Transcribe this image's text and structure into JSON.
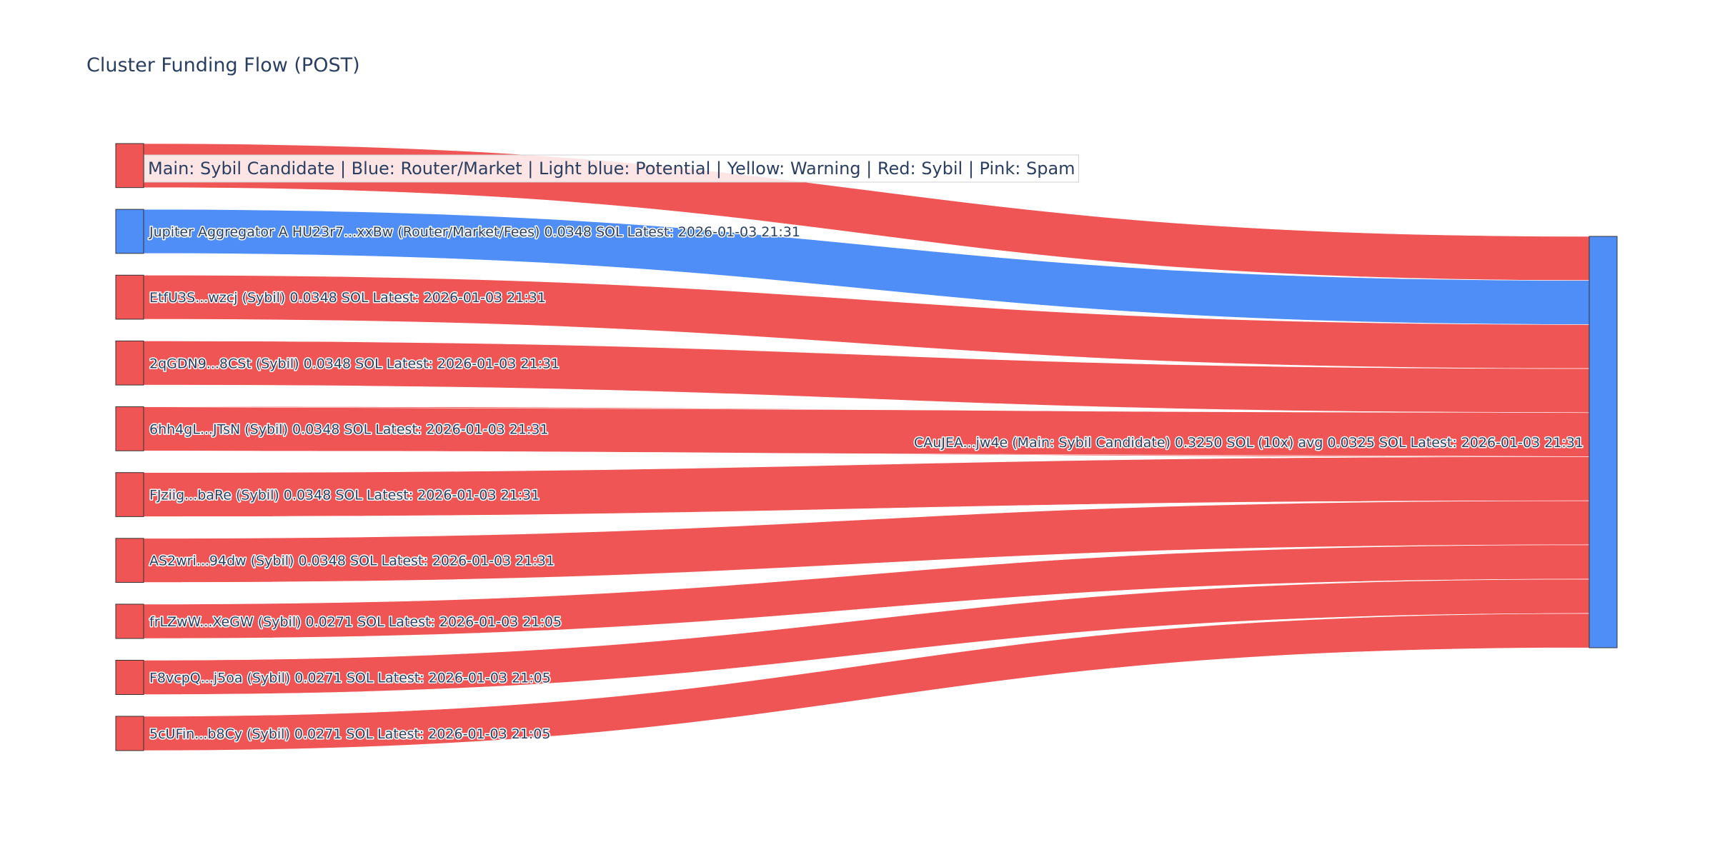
{
  "chart_data": {
    "type": "sankey",
    "title": "Cluster Funding Flow (POST)",
    "legend_text": "Main: Sybil Candidate  |  Blue: Router/Market | Light blue: Potential | Yellow: Warning | Red: Sybil | Pink: Spam",
    "legend_placement": "top-left",
    "colors": {
      "sybil": "#ef5555",
      "router": "#4f8ef7",
      "main": "#4f8ef7",
      "node_outline": "#333333",
      "text": "#2a3f5f"
    },
    "target": {
      "label": "CAuJEA...jw4e (Main: Sybil Candidate) 0.3250 SOL (10x) avg 0.0325 SOL Latest: 2026-01-03 21:31",
      "category": "main",
      "value": 0.325
    },
    "sources": [
      {
        "label": "",
        "category": "sybil",
        "value": 0.0348
      },
      {
        "label": "Jupiter Aggregator A HU23r7...xxBw (Router/Market/Fees) 0.0348 SOL Latest: 2026-01-03 21:31",
        "category": "router",
        "value": 0.0348
      },
      {
        "label": "EtfU3S...wzcj (Sybil) 0.0348 SOL Latest: 2026-01-03 21:31",
        "category": "sybil",
        "value": 0.0348
      },
      {
        "label": "2qGDN9...8CSt (Sybil) 0.0348 SOL Latest: 2026-01-03 21:31",
        "category": "sybil",
        "value": 0.0348
      },
      {
        "label": "6hh4gL...JTsN (Sybil) 0.0348 SOL Latest: 2026-01-03 21:31",
        "category": "sybil",
        "value": 0.0348
      },
      {
        "label": "FJziig...baRe (Sybil) 0.0348 SOL Latest: 2026-01-03 21:31",
        "category": "sybil",
        "value": 0.0348
      },
      {
        "label": "AS2wri...94dw (Sybil) 0.0348 SOL Latest: 2026-01-03 21:31",
        "category": "sybil",
        "value": 0.0348
      },
      {
        "label": "frLZwW...XeGW (Sybil) 0.0271 SOL Latest: 2026-01-03 21:05",
        "category": "sybil",
        "value": 0.0271
      },
      {
        "label": "F8vcpQ...j5oa (Sybil) 0.0271 SOL Latest: 2026-01-03 21:05",
        "category": "sybil",
        "value": 0.0271
      },
      {
        "label": "5cUFin...b8Cy (Sybil) 0.0271 SOL Latest: 2026-01-03 21:05",
        "category": "sybil",
        "value": 0.0271
      }
    ]
  }
}
